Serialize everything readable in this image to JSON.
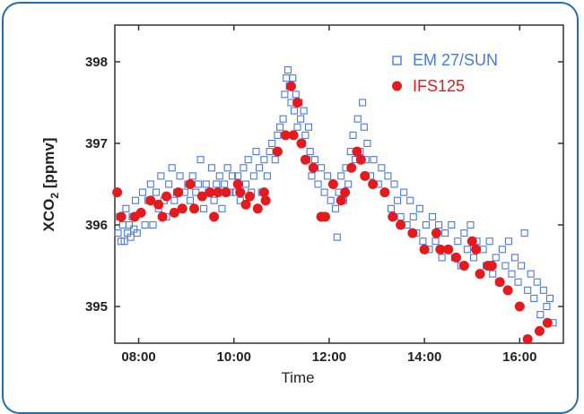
{
  "chart_data": {
    "type": "scatter",
    "xlabel": "Time",
    "ylabel_main": "XCO",
    "ylabel_sub": "2",
    "ylabel_unit": " [ppmv]",
    "xlim": [
      "07:30",
      "16:55"
    ],
    "ylim": [
      394.55,
      398.45
    ],
    "x_ticks": [
      "08:00",
      "10:00",
      "12:00",
      "14:00",
      "16:00"
    ],
    "y_ticks": [
      395,
      396,
      397,
      398
    ],
    "legend_position": "top-right",
    "colors": {
      "frame": "#1f6fb5",
      "em27": "#4a78e0",
      "ifs": "#e41a1c"
    },
    "series": [
      {
        "name": "EM 27/SUN",
        "marker": "open-square",
        "points": [
          [
            "07:34",
            395.9
          ],
          [
            "07:36",
            396.1
          ],
          [
            "07:38",
            395.8
          ],
          [
            "07:40",
            396.0
          ],
          [
            "07:42",
            395.8
          ],
          [
            "07:44",
            396.2
          ],
          [
            "07:46",
            395.9
          ],
          [
            "07:48",
            396.0
          ],
          [
            "07:50",
            395.85
          ],
          [
            "07:52",
            396.1
          ],
          [
            "07:54",
            395.95
          ],
          [
            "07:56",
            396.3
          ],
          [
            "07:58",
            395.9
          ],
          [
            "08:05",
            396.4
          ],
          [
            "08:08",
            396.0
          ],
          [
            "08:12",
            396.3
          ],
          [
            "08:15",
            396.5
          ],
          [
            "08:18",
            396.0
          ],
          [
            "08:22",
            396.4
          ],
          [
            "08:25",
            396.2
          ],
          [
            "08:28",
            396.6
          ],
          [
            "08:32",
            396.3
          ],
          [
            "08:35",
            396.1
          ],
          [
            "08:38",
            396.5
          ],
          [
            "08:42",
            396.7
          ],
          [
            "08:45",
            396.3
          ],
          [
            "08:48",
            396.4
          ],
          [
            "08:52",
            396.6
          ],
          [
            "08:55",
            396.2
          ],
          [
            "08:58",
            396.4
          ],
          [
            "09:02",
            396.5
          ],
          [
            "09:05",
            396.3
          ],
          [
            "09:08",
            396.6
          ],
          [
            "09:12",
            396.4
          ],
          [
            "09:15",
            396.5
          ],
          [
            "09:18",
            396.8
          ],
          [
            "09:22",
            396.2
          ],
          [
            "09:25",
            396.5
          ],
          [
            "09:28",
            396.4
          ],
          [
            "09:32",
            396.7
          ],
          [
            "09:35",
            396.3
          ],
          [
            "09:38",
            396.5
          ],
          [
            "09:42",
            396.6
          ],
          [
            "09:45",
            396.2
          ],
          [
            "09:48",
            396.5
          ],
          [
            "09:52",
            396.7
          ],
          [
            "09:55",
            396.4
          ],
          [
            "09:58",
            396.6
          ],
          [
            "10:02",
            396.4
          ],
          [
            "10:05",
            396.6
          ],
          [
            "10:08",
            396.3
          ],
          [
            "10:12",
            396.7
          ],
          [
            "10:15",
            396.5
          ],
          [
            "10:18",
            396.8
          ],
          [
            "10:22",
            396.4
          ],
          [
            "10:25",
            396.6
          ],
          [
            "10:28",
            396.9
          ],
          [
            "10:32",
            396.7
          ],
          [
            "10:35",
            396.4
          ],
          [
            "10:38",
            396.8
          ],
          [
            "10:42",
            396.6
          ],
          [
            "10:45",
            396.9
          ],
          [
            "10:48",
            397.0
          ],
          [
            "10:52",
            396.8
          ],
          [
            "10:55",
            397.1
          ],
          [
            "10:58",
            397.2
          ],
          [
            "11:02",
            397.3
          ],
          [
            "11:04",
            397.6
          ],
          [
            "11:06",
            397.8
          ],
          [
            "11:08",
            397.9
          ],
          [
            "11:10",
            397.7
          ],
          [
            "11:12",
            397.5
          ],
          [
            "11:14",
            397.8
          ],
          [
            "11:16",
            397.4
          ],
          [
            "11:18",
            397.6
          ],
          [
            "11:20",
            397.2
          ],
          [
            "11:22",
            397.5
          ],
          [
            "11:24",
            397.3
          ],
          [
            "11:26",
            397.0
          ],
          [
            "11:28",
            397.4
          ],
          [
            "11:30",
            397.1
          ],
          [
            "11:32",
            396.8
          ],
          [
            "11:34",
            397.2
          ],
          [
            "11:36",
            396.9
          ],
          [
            "11:38",
            396.6
          ],
          [
            "11:42",
            396.8
          ],
          [
            "11:46",
            396.5
          ],
          [
            "11:50",
            396.7
          ],
          [
            "11:54",
            396.4
          ],
          [
            "11:58",
            396.6
          ],
          [
            "12:02",
            396.3
          ],
          [
            "12:05",
            396.5
          ],
          [
            "12:08",
            396.2
          ],
          [
            "12:10",
            395.85
          ],
          [
            "12:12",
            396.4
          ],
          [
            "12:15",
            396.6
          ],
          [
            "12:18",
            396.3
          ],
          [
            "12:21",
            396.7
          ],
          [
            "12:24",
            396.5
          ],
          [
            "12:27",
            396.9
          ],
          [
            "12:30",
            397.1
          ],
          [
            "12:33",
            396.8
          ],
          [
            "12:36",
            397.3
          ],
          [
            "12:39",
            396.9
          ],
          [
            "12:42",
            397.5
          ],
          [
            "12:44",
            397.2
          ],
          [
            "12:46",
            396.8
          ],
          [
            "12:48",
            397.0
          ],
          [
            "12:52",
            396.6
          ],
          [
            "12:56",
            396.8
          ],
          [
            "13:02",
            396.5
          ],
          [
            "13:06",
            396.7
          ],
          [
            "13:10",
            396.4
          ],
          [
            "13:14",
            396.6
          ],
          [
            "13:18",
            396.2
          ],
          [
            "13:22",
            396.5
          ],
          [
            "13:26",
            396.3
          ],
          [
            "13:30",
            396.1
          ],
          [
            "13:34",
            396.4
          ],
          [
            "13:38",
            396.0
          ],
          [
            "13:42",
            396.3
          ],
          [
            "13:46",
            396.1
          ],
          [
            "13:50",
            395.9
          ],
          [
            "13:54",
            396.2
          ],
          [
            "13:58",
            395.8
          ],
          [
            "14:02",
            396.0
          ],
          [
            "14:06",
            395.7
          ],
          [
            "14:10",
            396.1
          ],
          [
            "14:14",
            395.8
          ],
          [
            "14:18",
            396.0
          ],
          [
            "14:22",
            395.6
          ],
          [
            "14:26",
            395.9
          ],
          [
            "14:30",
            395.7
          ],
          [
            "14:34",
            396.0
          ],
          [
            "14:38",
            395.6
          ],
          [
            "14:42",
            395.8
          ],
          [
            "14:46",
            395.5
          ],
          [
            "14:50",
            395.9
          ],
          [
            "14:54",
            395.7
          ],
          [
            "14:58",
            396.0
          ],
          [
            "15:02",
            395.6
          ],
          [
            "15:06",
            395.8
          ],
          [
            "15:10",
            395.4
          ],
          [
            "15:14",
            395.7
          ],
          [
            "15:18",
            395.5
          ],
          [
            "15:22",
            395.8
          ],
          [
            "15:26",
            395.4
          ],
          [
            "15:30",
            395.6
          ],
          [
            "15:34",
            395.3
          ],
          [
            "15:38",
            395.7
          ],
          [
            "15:42",
            395.5
          ],
          [
            "15:46",
            395.8
          ],
          [
            "15:50",
            395.4
          ],
          [
            "15:54",
            395.6
          ],
          [
            "15:58",
            395.3
          ],
          [
            "16:02",
            395.5
          ],
          [
            "16:06",
            395.9
          ],
          [
            "16:10",
            395.2
          ],
          [
            "16:14",
            395.4
          ],
          [
            "16:18",
            395.1
          ],
          [
            "16:22",
            395.3
          ],
          [
            "16:26",
            394.9
          ],
          [
            "16:30",
            395.2
          ],
          [
            "16:34",
            395.0
          ],
          [
            "16:38",
            395.1
          ],
          [
            "16:42",
            394.8
          ]
        ]
      },
      {
        "name": "IFS125",
        "marker": "filled-circle",
        "points": [
          [
            "07:33",
            396.4
          ],
          [
            "07:38",
            396.1
          ],
          [
            "07:55",
            396.1
          ],
          [
            "08:03",
            396.15
          ],
          [
            "08:15",
            396.3
          ],
          [
            "08:25",
            396.25
          ],
          [
            "08:30",
            396.1
          ],
          [
            "08:35",
            396.35
          ],
          [
            "08:45",
            396.15
          ],
          [
            "08:50",
            396.4
          ],
          [
            "08:55",
            396.2
          ],
          [
            "09:05",
            396.5
          ],
          [
            "09:10",
            396.2
          ],
          [
            "09:20",
            396.35
          ],
          [
            "09:30",
            396.4
          ],
          [
            "09:35",
            396.1
          ],
          [
            "09:40",
            396.4
          ],
          [
            "09:50",
            396.4
          ],
          [
            "10:05",
            396.5
          ],
          [
            "10:08",
            396.4
          ],
          [
            "10:15",
            396.25
          ],
          [
            "10:20",
            396.35
          ],
          [
            "10:30",
            396.2
          ],
          [
            "10:38",
            396.4
          ],
          [
            "10:40",
            396.3
          ],
          [
            "10:55",
            396.9
          ],
          [
            "11:05",
            397.1
          ],
          [
            "11:12",
            397.7
          ],
          [
            "11:15",
            397.1
          ],
          [
            "11:20",
            397.5
          ],
          [
            "11:25",
            397.0
          ],
          [
            "11:30",
            396.8
          ],
          [
            "11:40",
            396.7
          ],
          [
            "11:50",
            396.1
          ],
          [
            "11:55",
            396.1
          ],
          [
            "12:05",
            396.5
          ],
          [
            "12:15",
            396.3
          ],
          [
            "12:20",
            396.4
          ],
          [
            "12:28",
            396.7
          ],
          [
            "12:35",
            396.9
          ],
          [
            "12:40",
            396.8
          ],
          [
            "12:45",
            396.6
          ],
          [
            "12:55",
            396.5
          ],
          [
            "13:10",
            396.4
          ],
          [
            "13:20",
            396.1
          ],
          [
            "13:30",
            396.0
          ],
          [
            "13:45",
            395.9
          ],
          [
            "14:00",
            395.7
          ],
          [
            "14:15",
            395.9
          ],
          [
            "14:20",
            395.7
          ],
          [
            "14:30",
            395.7
          ],
          [
            "14:40",
            395.6
          ],
          [
            "14:50",
            395.5
          ],
          [
            "15:00",
            395.8
          ],
          [
            "15:05",
            395.7
          ],
          [
            "15:10",
            395.4
          ],
          [
            "15:20",
            395.5
          ],
          [
            "15:25",
            395.5
          ],
          [
            "15:35",
            395.3
          ],
          [
            "15:45",
            395.2
          ],
          [
            "16:00",
            395.0
          ],
          [
            "16:10",
            394.6
          ],
          [
            "16:25",
            394.7
          ],
          [
            "16:35",
            394.8
          ]
        ]
      }
    ]
  }
}
